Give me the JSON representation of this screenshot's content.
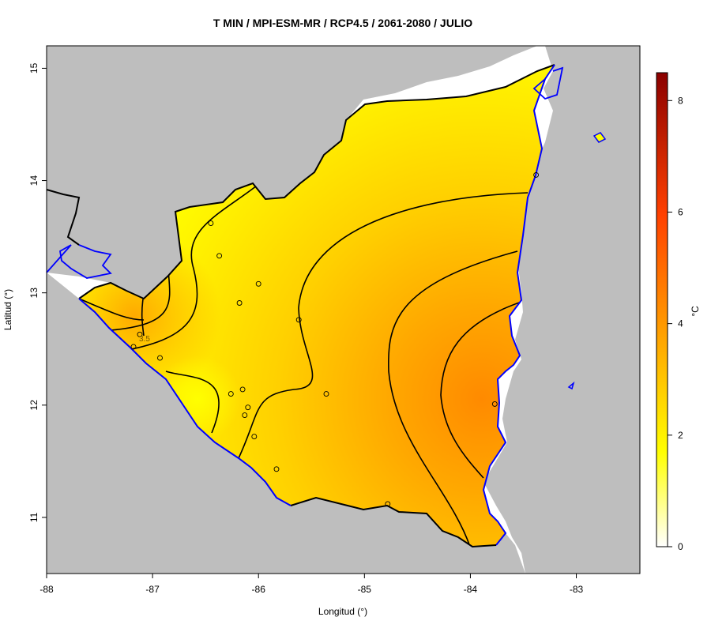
{
  "title": "T MIN / MPI-ESM-MR / RCP4.5 / 2061-2080 / JULIO",
  "x_axis": {
    "label": "Longitud (°)",
    "ticks": [
      "-88",
      "-87",
      "-86",
      "-85",
      "-84",
      "-83"
    ]
  },
  "y_axis": {
    "label": "Latitud (°)",
    "ticks": [
      "11",
      "12",
      "13",
      "14",
      "15"
    ]
  },
  "legend": {
    "unit": "°C",
    "ticks": [
      "0",
      "2",
      "4",
      "6",
      "8"
    ],
    "colors": [
      "#ffffff",
      "#ffff00",
      "#ffa000",
      "#ff4000",
      "#8b0000"
    ]
  },
  "contour_labels": [
    "3.5"
  ],
  "colors": {
    "land_outside": "#bebebe",
    "field_low": "#ffff00",
    "field_high": "#ff8c00",
    "coast": "#0000ff",
    "border": "#000000"
  },
  "chart_data": {
    "type": "heatmap",
    "title": "T MIN / MPI-ESM-MR / RCP4.5 / 2061-2080 / JULIO",
    "xlabel": "Longitud (°)",
    "ylabel": "Latitud (°)",
    "xlim": [
      -88,
      -82.4
    ],
    "ylim": [
      10.5,
      15.2
    ],
    "colorbar": {
      "label": "°C",
      "min": 0,
      "max": 8.5
    },
    "stations": [
      {
        "lon": -86.45,
        "lat": 13.62
      },
      {
        "lon": -86.37,
        "lat": 13.33
      },
      {
        "lon": -86.0,
        "lat": 13.08
      },
      {
        "lon": -86.18,
        "lat": 12.91
      },
      {
        "lon": -87.12,
        "lat": 12.63
      },
      {
        "lon": -87.18,
        "lat": 12.52
      },
      {
        "lon": -86.93,
        "lat": 12.42
      },
      {
        "lon": -85.62,
        "lat": 12.76
      },
      {
        "lon": -86.26,
        "lat": 12.1
      },
      {
        "lon": -86.15,
        "lat": 12.14
      },
      {
        "lon": -86.1,
        "lat": 11.98
      },
      {
        "lon": -86.13,
        "lat": 11.91
      },
      {
        "lon": -85.36,
        "lat": 12.1
      },
      {
        "lon": -86.04,
        "lat": 11.72
      },
      {
        "lon": -85.83,
        "lat": 11.43
      },
      {
        "lon": -84.78,
        "lat": 11.12
      },
      {
        "lon": -83.77,
        "lat": 12.01
      },
      {
        "lon": -83.38,
        "lat": 14.05
      }
    ]
  }
}
